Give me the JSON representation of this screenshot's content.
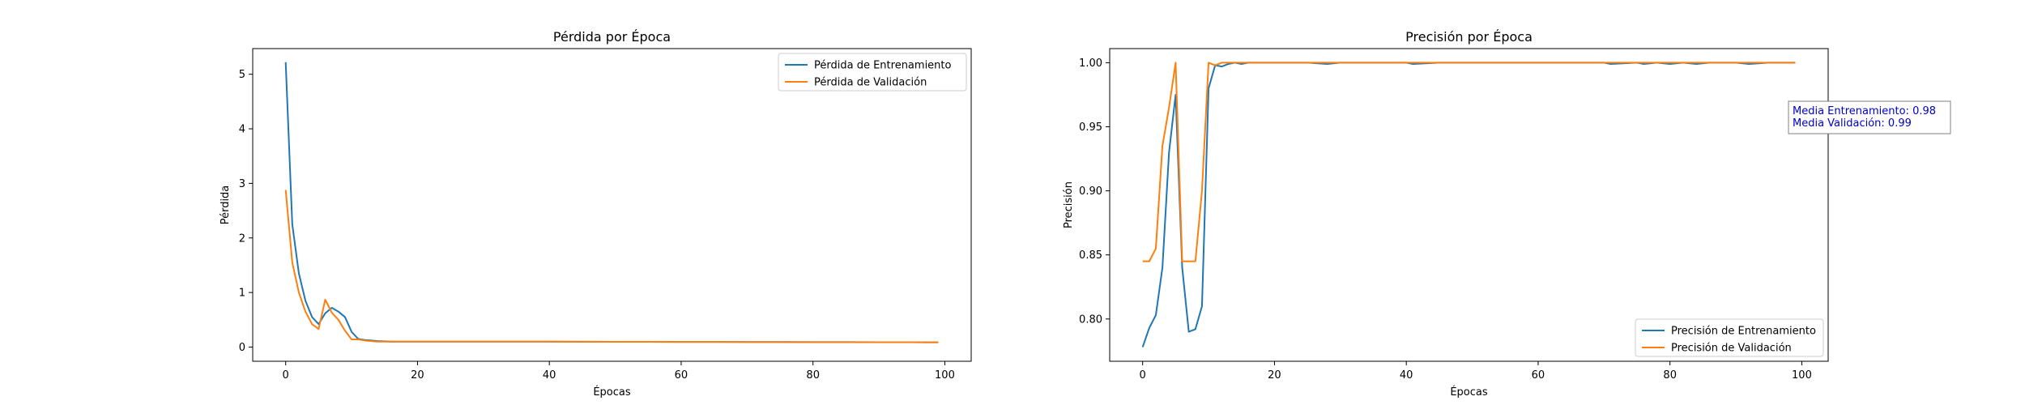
{
  "colors": {
    "train": "#1f77b4",
    "val": "#ff7f0e",
    "annotation_text": "#0000cd",
    "frame": "#000000"
  },
  "chart_data": [
    {
      "type": "line",
      "title": "Pérdida por Época",
      "xlabel": "Épocas",
      "ylabel": "Pérdida",
      "xlim": [
        -5,
        104
      ],
      "ylim": [
        -0.26,
        5.47
      ],
      "xticks": [
        0,
        20,
        40,
        60,
        80,
        100
      ],
      "yticks": [
        0,
        1,
        2,
        3,
        4,
        5
      ],
      "xtick_labels": [
        "0",
        "20",
        "40",
        "60",
        "80",
        "100"
      ],
      "ytick_labels": [
        "0",
        "1",
        "2",
        "3",
        "4",
        "5"
      ],
      "legend_position": "upper right",
      "series": [
        {
          "name": "Pérdida de Entrenamiento",
          "color_key": "train",
          "x": [
            0,
            1,
            2,
            3,
            4,
            5,
            6,
            7,
            8,
            9,
            10,
            11,
            12,
            13,
            14,
            15,
            16,
            17,
            18,
            19,
            20,
            25,
            30,
            35,
            40,
            45,
            50,
            55,
            60,
            65,
            70,
            75,
            80,
            85,
            90,
            95,
            99
          ],
          "y": [
            5.22,
            2.25,
            1.35,
            0.85,
            0.55,
            0.42,
            0.62,
            0.72,
            0.65,
            0.55,
            0.28,
            0.15,
            0.13,
            0.12,
            0.11,
            0.105,
            0.1,
            0.1,
            0.1,
            0.1,
            0.1,
            0.1,
            0.1,
            0.1,
            0.1,
            0.098,
            0.097,
            0.096,
            0.095,
            0.094,
            0.093,
            0.092,
            0.091,
            0.09,
            0.089,
            0.088,
            0.087
          ]
        },
        {
          "name": "Pérdida de Validación",
          "color_key": "val",
          "x": [
            0,
            1,
            2,
            3,
            4,
            5,
            6,
            7,
            8,
            9,
            10,
            11,
            12,
            13,
            14,
            15,
            16,
            17,
            18,
            19,
            20,
            25,
            30,
            35,
            40,
            45,
            50,
            55,
            60,
            65,
            70,
            75,
            80,
            85,
            90,
            95,
            99
          ],
          "y": [
            2.88,
            1.55,
            1.0,
            0.65,
            0.42,
            0.33,
            0.87,
            0.63,
            0.5,
            0.3,
            0.14,
            0.14,
            0.12,
            0.11,
            0.1,
            0.1,
            0.1,
            0.1,
            0.1,
            0.1,
            0.1,
            0.1,
            0.1,
            0.1,
            0.1,
            0.098,
            0.097,
            0.096,
            0.095,
            0.094,
            0.093,
            0.092,
            0.091,
            0.09,
            0.089,
            0.088,
            0.087
          ]
        }
      ]
    },
    {
      "type": "line",
      "title": "Precisión por Época",
      "xlabel": "Épocas",
      "ylabel": "Precisión",
      "xlim": [
        -5,
        104
      ],
      "ylim": [
        0.767,
        1.011
      ],
      "xticks": [
        0,
        20,
        40,
        60,
        80,
        100
      ],
      "yticks": [
        0.8,
        0.85,
        0.9,
        0.95,
        1.0
      ],
      "xtick_labels": [
        "0",
        "20",
        "40",
        "60",
        "80",
        "100"
      ],
      "ytick_labels": [
        "0.80",
        "0.85",
        "0.90",
        "0.95",
        "1.00"
      ],
      "legend_position": "lower right",
      "annotation": [
        "Media Entrenamiento: 0.98",
        "Media Validación: 0.99"
      ],
      "series": [
        {
          "name": "Precisión de Entrenamiento",
          "color_key": "train",
          "x": [
            0,
            1,
            2,
            3,
            4,
            5,
            6,
            7,
            8,
            9,
            10,
            11,
            12,
            13,
            14,
            15,
            16,
            17,
            18,
            19,
            20,
            25,
            28,
            30,
            35,
            40,
            41,
            45,
            50,
            55,
            60,
            65,
            70,
            71,
            75,
            76,
            78,
            80,
            82,
            84,
            86,
            90,
            92,
            95,
            99
          ],
          "y": [
            0.778,
            0.793,
            0.803,
            0.84,
            0.93,
            0.975,
            0.84,
            0.79,
            0.792,
            0.81,
            0.98,
            0.998,
            0.997,
            0.999,
            1.0,
            0.999,
            1.0,
            1.0,
            1.0,
            1.0,
            1.0,
            1.0,
            0.999,
            1.0,
            1.0,
            1.0,
            0.999,
            1.0,
            1.0,
            1.0,
            1.0,
            1.0,
            1.0,
            0.999,
            1.0,
            0.999,
            1.0,
            0.999,
            1.0,
            0.999,
            1.0,
            1.0,
            0.999,
            1.0,
            1.0
          ]
        },
        {
          "name": "Precisión de Validación",
          "color_key": "val",
          "x": [
            0,
            1,
            2,
            3,
            4,
            5,
            6,
            7,
            8,
            9,
            10,
            11,
            12,
            15,
            20,
            30,
            40,
            50,
            60,
            70,
            80,
            90,
            99
          ],
          "y": [
            0.845,
            0.845,
            0.855,
            0.935,
            0.965,
            1.0,
            0.845,
            0.845,
            0.845,
            0.9,
            1.0,
            0.998,
            1.0,
            1.0,
            1.0,
            1.0,
            1.0,
            1.0,
            1.0,
            1.0,
            1.0,
            1.0,
            1.0
          ]
        }
      ]
    }
  ]
}
